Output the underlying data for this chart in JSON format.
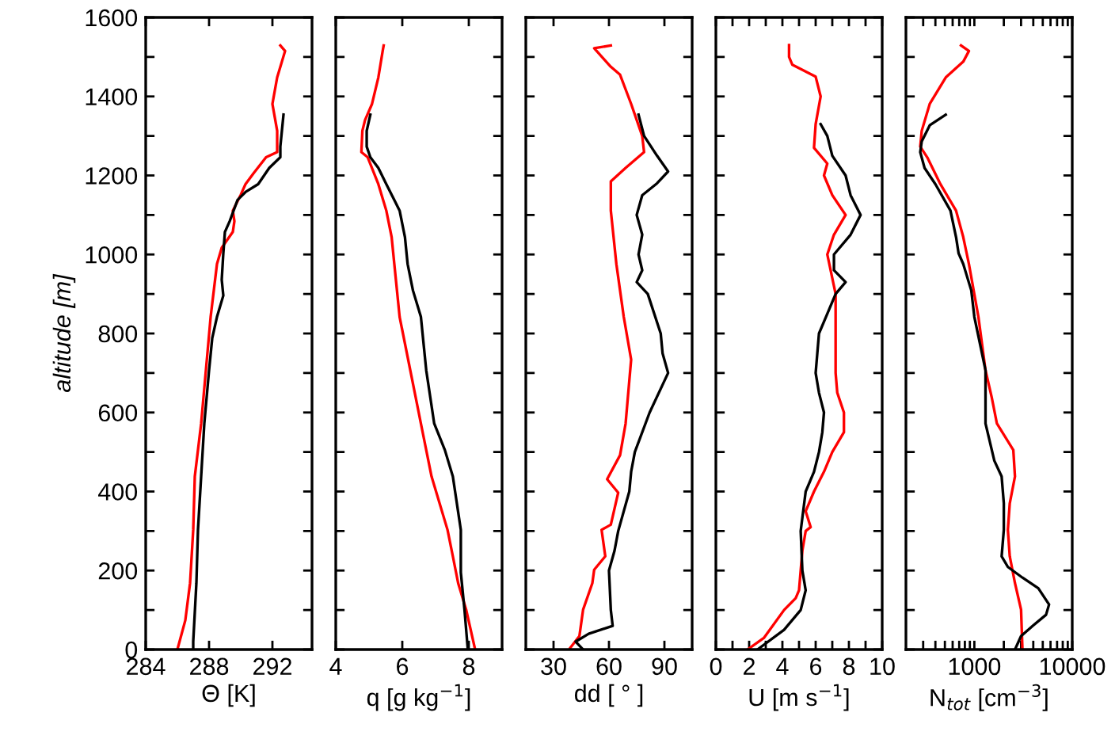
{
  "chart_data": [
    {
      "type": "line",
      "xlabel": "Θ [K]",
      "ylabel": "altitude [m]",
      "xlim": [
        284,
        294.5
      ],
      "xticks": [
        284,
        288,
        292
      ],
      "ylim": [
        0,
        1600
      ],
      "yticks": [
        0,
        {
          "value": 100,
          "label": null
        },
        200,
        {
          "value": 300,
          "label": null
        },
        400,
        {
          "value": 500,
          "label": null
        },
        600,
        {
          "value": 700,
          "label": null
        },
        800,
        {
          "value": 900,
          "label": null
        },
        1000,
        {
          "value": 1100,
          "label": null
        },
        1200,
        {
          "value": 1300,
          "label": null
        },
        1400,
        {
          "value": 1500,
          "label": null
        },
        1600
      ],
      "grid": false,
      "series": [
        {
          "color": "#ff0000",
          "x": [
            286.0,
            286.5,
            286.8,
            287.0,
            287.1,
            287.5,
            287.8,
            288.1,
            288.5,
            288.8,
            289.5,
            289.6,
            289.5,
            290.0,
            290.3,
            290.8,
            291.6,
            292.3,
            292.3,
            292.0,
            292.3,
            292.8,
            292.5
          ],
          "values": [
            0,
            74,
            168,
            303,
            438,
            572,
            707,
            842,
            976,
            1017,
            1057,
            1084,
            1111,
            1151,
            1178,
            1205,
            1246,
            1259,
            1313,
            1381,
            1448,
            1515,
            1529
          ]
        },
        {
          "color": "#000000",
          "x": [
            287.0,
            287.0,
            287.2,
            287.3,
            287.5,
            287.7,
            288.0,
            288.2,
            288.5,
            288.9,
            288.8,
            288.9,
            289.0,
            289.3,
            289.8,
            290.3,
            291.1,
            291.8,
            292.5,
            292.5,
            292.7
          ],
          "values": [
            0,
            20,
            168,
            303,
            438,
            572,
            707,
            788,
            842,
            896,
            936,
            1003,
            1057,
            1084,
            1138,
            1158,
            1178,
            1219,
            1246,
            1273,
            1354
          ]
        }
      ]
    },
    {
      "type": "line",
      "xlabel": "q [g kg$^{−1}$]",
      "xlim": [
        4,
        9
      ],
      "xticks": [
        4,
        6,
        8
      ],
      "ylim": [
        0,
        1600
      ],
      "yticks": [
        0,
        {
          "value": 100,
          "label": null
        },
        200,
        {
          "value": 300,
          "label": null
        },
        400,
        {
          "value": 500,
          "label": null
        },
        600,
        {
          "value": 700,
          "label": null
        },
        800,
        {
          "value": 900,
          "label": null
        },
        1000,
        {
          "value": 1100,
          "label": null
        },
        1200,
        {
          "value": 1300,
          "label": null
        },
        1400,
        {
          "value": 1500,
          "label": null
        },
        1600
      ],
      "tick_labels": "x",
      "grid": false,
      "series": [
        {
          "color": "#ff0000",
          "x": [
            8.19,
            7.92,
            7.68,
            7.52,
            7.36,
            6.88,
            6.56,
            6.24,
            5.92,
            5.76,
            5.68,
            5.52,
            5.28,
            4.96,
            4.77,
            4.8,
            4.88,
            5.09,
            5.28,
            5.41,
            5.44
          ],
          "values": [
            0,
            101,
            168,
            236,
            303,
            438,
            572,
            707,
            842,
            976,
            1044,
            1111,
            1178,
            1246,
            1259,
            1313,
            1340,
            1381,
            1448,
            1515,
            1529
          ]
        },
        {
          "color": "#000000",
          "x": [
            7.97,
            7.87,
            7.76,
            7.76,
            7.52,
            7.28,
            6.96,
            6.72,
            6.64,
            6.56,
            6.32,
            6.16,
            6.08,
            5.92,
            5.52,
            5.28,
            5.04,
            4.93,
            4.93,
            5.04
          ],
          "values": [
            0,
            101,
            195,
            303,
            438,
            505,
            572,
            707,
            774,
            842,
            909,
            976,
            1044,
            1111,
            1178,
            1219,
            1246,
            1273,
            1313,
            1354
          ]
        }
      ]
    },
    {
      "type": "line",
      "xlabel": "dd [ ° ]",
      "xlim": [
        15,
        105
      ],
      "xticks": [
        30,
        60,
        90
      ],
      "ylim": [
        0,
        1600
      ],
      "yticks": [
        0,
        {
          "value": 100,
          "label": null
        },
        200,
        {
          "value": 300,
          "label": null
        },
        400,
        {
          "value": 500,
          "label": null
        },
        600,
        {
          "value": 700,
          "label": null
        },
        800,
        {
          "value": 900,
          "label": null
        },
        1000,
        {
          "value": 1100,
          "label": null
        },
        1200,
        {
          "value": 1300,
          "label": null
        },
        1400,
        {
          "value": 1500,
          "label": null
        },
        1600
      ],
      "tick_labels": "x",
      "grid": false,
      "series": [
        {
          "color": "#ff0000",
          "x": [
            39,
            44,
            46,
            51,
            52,
            58,
            56,
            61,
            65,
            59,
            66,
            69,
            72,
            68,
            64,
            61,
            61,
            69,
            79,
            78,
            72,
            66,
            61,
            52,
            61
          ],
          "values": [
            4,
            34,
            101,
            168,
            202,
            236,
            303,
            316,
            397,
            431,
            492,
            572,
            734,
            842,
            976,
            1111,
            1185,
            1219,
            1259,
            1300,
            1381,
            1455,
            1475,
            1522,
            1529
          ]
        },
        {
          "color": "#000000",
          "x": [
            46,
            42,
            49,
            62,
            61,
            60,
            63,
            65,
            71,
            72,
            74,
            82,
            92,
            89,
            88,
            81,
            75,
            78,
            76,
            78,
            75,
            78,
            86,
            92,
            86,
            79,
            76
          ],
          "values": [
            0,
            20,
            40,
            60,
            100,
            200,
            250,
            300,
            400,
            450,
            500,
            600,
            700,
            750,
            800,
            900,
            930,
            960,
            1000,
            1050,
            1100,
            1150,
            1180,
            1210,
            1250,
            1300,
            1354
          ]
        }
      ]
    },
    {
      "type": "line",
      "xlabel": "U [m s$^{−1}$]",
      "xlim": [
        0,
        10
      ],
      "xticks": [
        0,
        {
          "value": 1,
          "label": null
        },
        2,
        {
          "value": 3,
          "label": null
        },
        4,
        {
          "value": 5,
          "label": null
        },
        6,
        {
          "value": 7,
          "label": null
        },
        8,
        {
          "value": 9,
          "label": null
        },
        10
      ],
      "ylim": [
        0,
        1600
      ],
      "yticks": [
        0,
        {
          "value": 100,
          "label": null
        },
        200,
        {
          "value": 300,
          "label": null
        },
        400,
        {
          "value": 500,
          "label": null
        },
        600,
        {
          "value": 700,
          "label": null
        },
        800,
        {
          "value": 900,
          "label": null
        },
        1000,
        {
          "value": 1100,
          "label": null
        },
        1200,
        {
          "value": 1300,
          "label": null
        },
        1400,
        {
          "value": 1500,
          "label": null
        },
        1600
      ],
      "tick_labels": "x",
      "grid": false,
      "series": [
        {
          "color": "#ff0000",
          "x": [
            1.9,
            2.9,
            4.1,
            4.8,
            5.0,
            5.1,
            5.2,
            5.4,
            5.7,
            5.4,
            5.9,
            6.5,
            7.0,
            7.7,
            7.7,
            7.3,
            7.2,
            7.2,
            7.2,
            6.7,
            7.1,
            7.8,
            7.0,
            6.5,
            6.7,
            5.9,
            6.0,
            6.3,
            6.0,
            4.6,
            4.4,
            4.4
          ],
          "values": [
            0,
            30,
            100,
            130,
            150,
            200,
            250,
            300,
            310,
            350,
            400,
            450,
            500,
            550,
            600,
            650,
            700,
            800,
            900,
            1000,
            1050,
            1100,
            1150,
            1200,
            1230,
            1270,
            1330,
            1400,
            1450,
            1480,
            1500,
            1530
          ]
        },
        {
          "color": "#000000",
          "x": [
            2.5,
            4.1,
            5.1,
            5.4,
            5.2,
            5.1,
            5.4,
            5.9,
            6.2,
            6.4,
            6.5,
            6.2,
            6.0,
            6.1,
            6.2,
            6.7,
            7.2,
            7.8,
            7.1,
            7.1,
            8.1,
            8.7,
            8.1,
            7.8,
            7.0,
            6.7,
            6.3
          ],
          "values": [
            0,
            50,
            100,
            150,
            200,
            300,
            400,
            450,
            500,
            550,
            600,
            650,
            700,
            750,
            800,
            850,
            900,
            930,
            960,
            1000,
            1050,
            1100,
            1150,
            1200,
            1250,
            1300,
            1330
          ]
        }
      ]
    },
    {
      "type": "line",
      "xlabel": "N$_{tot}$ [cm$^{−3}$]",
      "log": "x",
      "xlim": [
        200,
        10000
      ],
      "xticks": [
        {
          "value": 300,
          "label": null
        },
        {
          "value": 400,
          "label": null
        },
        {
          "value": 500,
          "label": null
        },
        {
          "value": 600,
          "label": null
        },
        {
          "value": 700,
          "label": null
        },
        {
          "value": 800,
          "label": null
        },
        {
          "value": 900,
          "label": null
        },
        1000,
        {
          "value": 2000,
          "label": null
        },
        {
          "value": 3000,
          "label": null
        },
        {
          "value": 4000,
          "label": null
        },
        {
          "value": 5000,
          "label": null
        },
        {
          "value": 6000,
          "label": null
        },
        {
          "value": 7000,
          "label": null
        },
        {
          "value": 8000,
          "label": null
        },
        {
          "value": 9000,
          "label": null
        },
        10000
      ],
      "ylim": [
        0,
        1600
      ],
      "yticks": [
        0,
        {
          "value": 100,
          "label": null
        },
        200,
        {
          "value": 300,
          "label": null
        },
        400,
        {
          "value": 500,
          "label": null
        },
        600,
        {
          "value": 700,
          "label": null
        },
        800,
        {
          "value": 900,
          "label": null
        },
        1000,
        {
          "value": 1100,
          "label": null
        },
        1200,
        {
          "value": 1300,
          "label": null
        },
        1400,
        {
          "value": 1500,
          "label": null
        },
        1600
      ],
      "tick_labels": "x",
      "grid": false,
      "series": [
        {
          "color": "#ff0000",
          "x": [
            3100,
            3000,
            2600,
            2300,
            2200,
            2300,
            2600,
            2500,
            1700,
            1500,
            1300,
            1100,
            880,
            770,
            650,
            450,
            330,
            280,
            290,
            350,
            510,
            770,
            880,
            730
          ],
          "values": [
            0,
            101,
            168,
            236,
            303,
            370,
            438,
            505,
            572,
            640,
            707,
            842,
            976,
            1044,
            1111,
            1178,
            1246,
            1273,
            1313,
            1381,
            1448,
            1488,
            1515,
            1529
          ]
        },
        {
          "color": "#000000",
          "x": [
            2600,
            3000,
            4000,
            5400,
            5800,
            4500,
            3100,
            2200,
            1900,
            2000,
            2000,
            1900,
            1600,
            1300,
            1300,
            1000,
            930,
            770,
            690,
            650,
            570,
            400,
            310,
            280,
            290,
            350,
            510
          ],
          "values": [
            0,
            34,
            61,
            88,
            114,
            155,
            182,
            209,
            236,
            303,
            370,
            438,
            478,
            572,
            707,
            842,
            909,
            976,
            1003,
            1044,
            1111,
            1178,
            1219,
            1259,
            1286,
            1327,
            1354
          ]
        }
      ]
    }
  ]
}
